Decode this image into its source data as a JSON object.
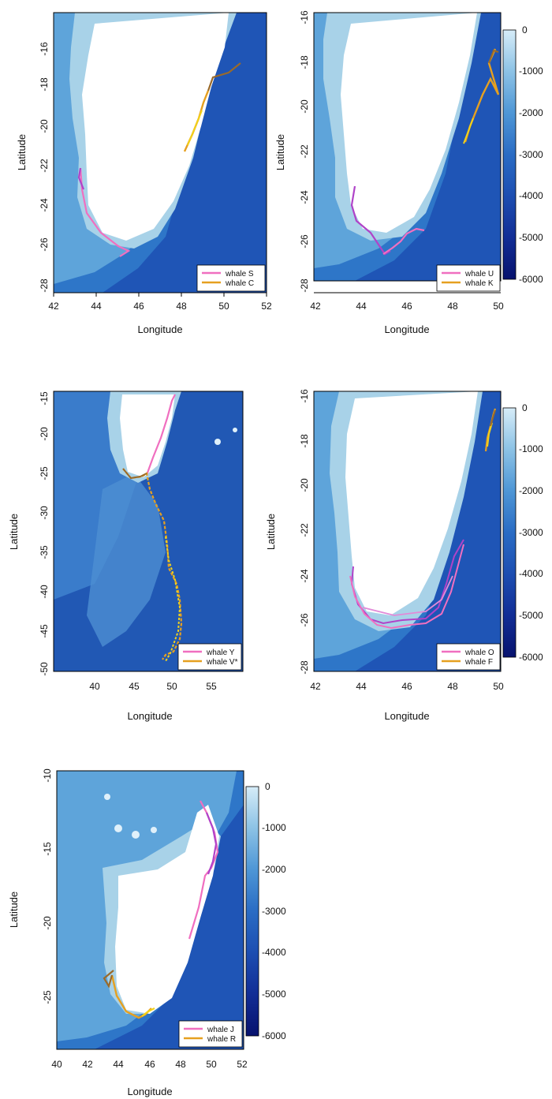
{
  "colors": {
    "land": "#ffffff",
    "shelf": "#a8d2e8",
    "shallow": "#5aa2d8",
    "mid": "#2d78c8",
    "deep": "#1a4fb0",
    "deepest": "#0a1f8a",
    "whale_pink": "#f06fc0",
    "whale_magenta": "#b043c8",
    "whale_orange": "#e6a020",
    "whale_yellow": "#f2d21a",
    "whale_brown": "#9a6a2a"
  },
  "colorbar": {
    "labels": [
      "0",
      "-1000",
      "-2000",
      "-3000",
      "-4000",
      "-5000",
      "-6000"
    ],
    "stops": [
      "#d6ecf8",
      "#8fc4e6",
      "#4f97d6",
      "#2a6cc4",
      "#1d4fb2",
      "#122e96",
      "#07126e"
    ]
  },
  "maps": [
    {
      "id": "a",
      "xlabel": "Longitude",
      "ylabel": "Latitude",
      "xticks": [
        "42",
        "44",
        "46",
        "48",
        "50",
        "52"
      ],
      "yticks": [
        "-16",
        "-18",
        "-20",
        "-22",
        "-24",
        "-26",
        "-28"
      ],
      "legend": [
        "whale S",
        "whale C"
      ]
    },
    {
      "id": "b",
      "xlabel": "Longitude",
      "ylabel": "Latitude",
      "xticks": [
        "42",
        "44",
        "46",
        "48",
        "50"
      ],
      "yticks": [
        "-16",
        "-18",
        "-20",
        "-22",
        "-24",
        "-26",
        "-28"
      ],
      "legend": [
        "whale U",
        "whale K"
      ]
    },
    {
      "id": "c",
      "xlabel": "Longitude",
      "ylabel": "Latitude",
      "xticks": [
        "40",
        "45",
        "50",
        "55"
      ],
      "yticks": [
        "-15",
        "-20",
        "-25",
        "-30",
        "-35",
        "-40",
        "-45",
        "-50"
      ],
      "legend": [
        "whale Y",
        "whale V*"
      ]
    },
    {
      "id": "d",
      "xlabel": "Longitude",
      "ylabel": "Latitude",
      "xticks": [
        "42",
        "44",
        "46",
        "48",
        "50"
      ],
      "yticks": [
        "-16",
        "-18",
        "-20",
        "-22",
        "-24",
        "-26",
        "-28"
      ],
      "legend": [
        "whale O",
        "whale F"
      ]
    },
    {
      "id": "e",
      "xlabel": "Longitude",
      "ylabel": "Latitude",
      "xticks": [
        "40",
        "42",
        "44",
        "46",
        "48",
        "50",
        "52"
      ],
      "yticks": [
        "-10",
        "-15",
        "-20",
        "-25"
      ],
      "legend": [
        "whale J",
        "whale R"
      ]
    }
  ]
}
